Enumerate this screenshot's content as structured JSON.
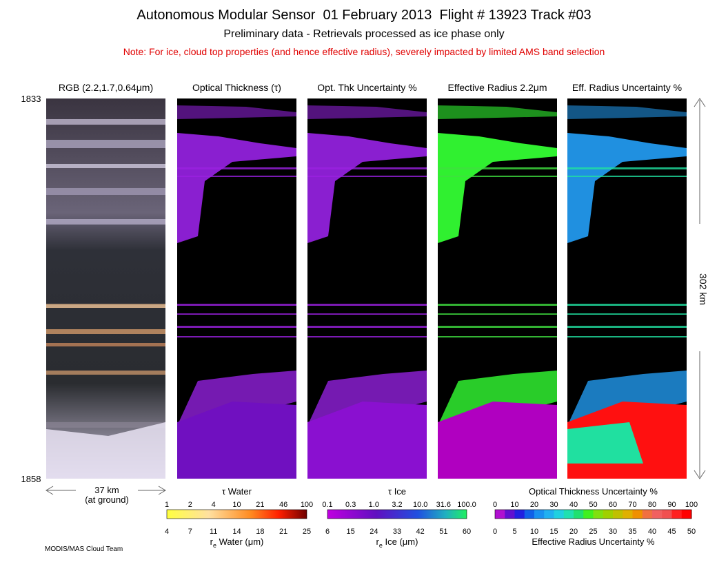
{
  "header": {
    "title": "Autonomous Modular Sensor  01 February 2013  Flight # 13923 Track #03",
    "subtitle": "Preliminary data - Retrievals processed as ice phase only",
    "note": "Note: For ice, cloud top properties (and hence effective radius), severely impacted by limited AMS band selection"
  },
  "panels": [
    {
      "title": "RGB (2.2,1.7,0.64μm)"
    },
    {
      "title": "Optical Thickness (τ)"
    },
    {
      "title": "Opt. Thk Uncertainty %"
    },
    {
      "title": "Effective Radius 2.2μm"
    },
    {
      "title": "Eff. Radius Uncertainty %"
    }
  ],
  "time_start": "1833",
  "time_end": "1858",
  "scale": {
    "along_track": "302 km",
    "cross_track": "37 km",
    "cross_track_note": "(at ground)"
  },
  "colorbars": [
    {
      "top_title": "τ Water",
      "top_ticks": [
        "1",
        "2",
        "4",
        "10",
        "21",
        "46",
        "100"
      ],
      "bottom_ticks": [
        "4",
        "7",
        "11",
        "14",
        "18",
        "21",
        "25"
      ],
      "bottom_title": {
        "symbol": "r",
        "subscript": "e",
        "text": " Water (μm)"
      }
    },
    {
      "top_title": "τ Ice",
      "top_ticks": [
        "0.1",
        "0.3",
        "1.0",
        "3.2",
        "10.0",
        "31.6",
        "100.0"
      ],
      "bottom_ticks": [
        "6",
        "15",
        "24",
        "33",
        "42",
        "51",
        "60"
      ],
      "bottom_title": {
        "symbol": "r",
        "subscript": "e",
        "text": " Ice (μm)"
      }
    },
    {
      "top_title": "Optical Thickness Uncertainty %",
      "top_ticks": [
        "0",
        "10",
        "20",
        "30",
        "40",
        "50",
        "60",
        "70",
        "80",
        "90",
        "100"
      ],
      "bottom_ticks": [
        "0",
        "5",
        "10",
        "15",
        "20",
        "25",
        "30",
        "35",
        "40",
        "45",
        "50"
      ],
      "bottom_title": "Effective Radius Uncertainty %"
    }
  ],
  "credit": "MODIS/MAS Cloud Team"
}
